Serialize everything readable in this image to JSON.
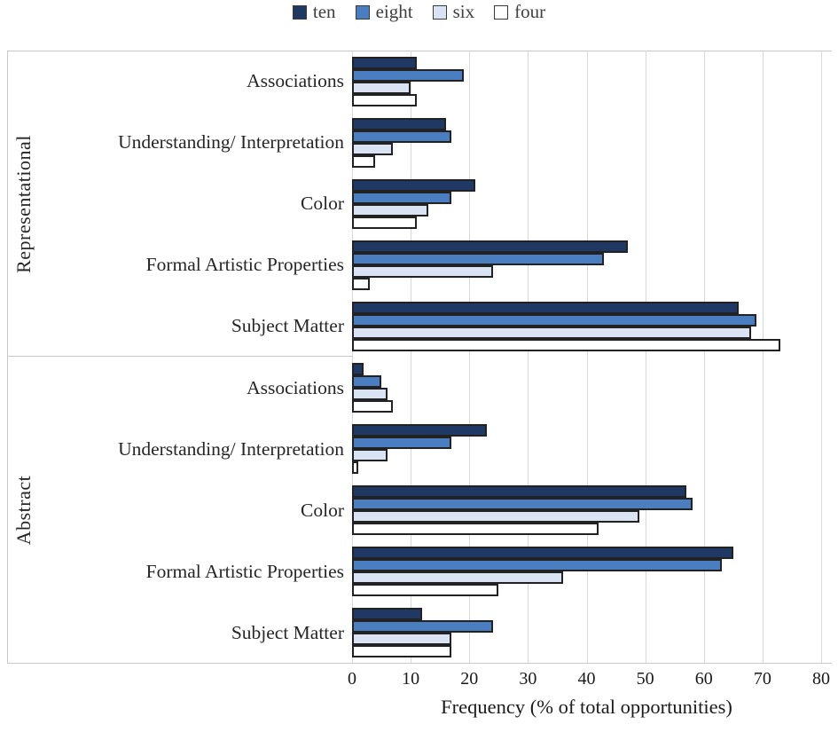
{
  "chart_data": {
    "type": "bar",
    "orientation": "horizontal",
    "title": "",
    "xlabel": "Frequency (% of total opportunities)",
    "xlim": [
      0,
      80
    ],
    "xticks": [
      0,
      10,
      20,
      30,
      40,
      50,
      60,
      70,
      80
    ],
    "grid": true,
    "legend_position": "top",
    "series_names": [
      "ten",
      "eight",
      "six",
      "four"
    ],
    "series_colors": {
      "ten": "#1F3864",
      "eight": "#4A7EC1",
      "six": "#DAE3F3",
      "four": "#FFFFFF"
    },
    "sections": [
      {
        "label": "Representational",
        "rows": [
          {
            "category": "Associations",
            "values": {
              "ten": 11,
              "eight": 19,
              "six": 10,
              "four": 11
            }
          },
          {
            "category": "Understanding/ Interpretation",
            "values": {
              "ten": 16,
              "eight": 17,
              "six": 7,
              "four": 4
            }
          },
          {
            "category": "Color",
            "values": {
              "ten": 21,
              "eight": 17,
              "six": 13,
              "four": 11
            }
          },
          {
            "category": "Formal Artistic Properties",
            "values": {
              "ten": 47,
              "eight": 43,
              "six": 24,
              "four": 3
            }
          },
          {
            "category": "Subject Matter",
            "values": {
              "ten": 66,
              "eight": 69,
              "six": 68,
              "four": 73
            }
          }
        ]
      },
      {
        "label": "Abstract",
        "rows": [
          {
            "category": "Associations",
            "values": {
              "ten": 2,
              "eight": 5,
              "six": 6,
              "four": 7
            }
          },
          {
            "category": "Understanding/ Interpretation",
            "values": {
              "ten": 23,
              "eight": 17,
              "six": 6,
              "four": 1
            }
          },
          {
            "category": "Color",
            "values": {
              "ten": 57,
              "eight": 58,
              "six": 49,
              "four": 42
            }
          },
          {
            "category": "Formal Artistic Properties",
            "values": {
              "ten": 65,
              "eight": 63,
              "six": 36,
              "four": 25
            }
          },
          {
            "category": "Subject Matter",
            "values": {
              "ten": 12,
              "eight": 24,
              "six": 17,
              "four": 17
            }
          }
        ]
      }
    ]
  }
}
